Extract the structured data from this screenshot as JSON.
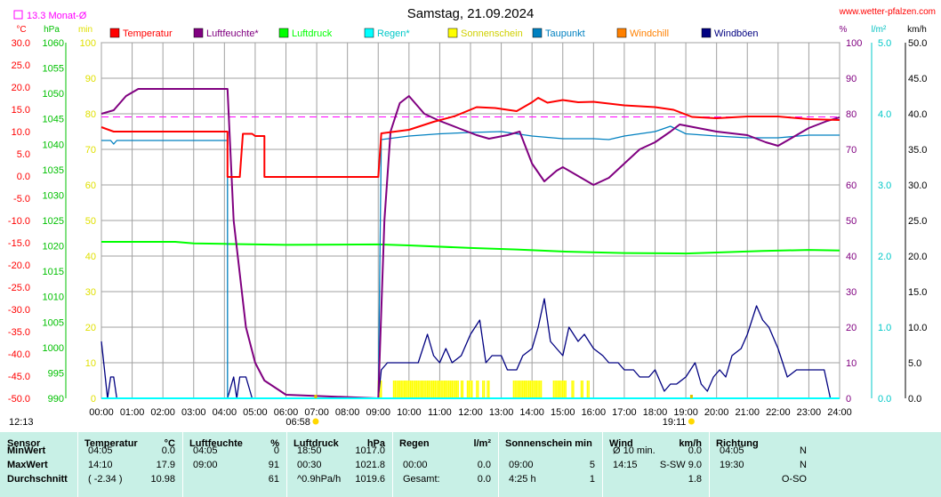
{
  "header": {
    "title": "Samstag, 21.09.2024",
    "site": "www.wetter-pfalzen.com",
    "month_avg_label": "13.3 Monat-Ø"
  },
  "axes": {
    "units_left": [
      "°C",
      "hPa",
      "min"
    ],
    "units_right": [
      "%",
      "l/m²",
      "km/h"
    ],
    "temp_ticks": [
      "30.0",
      "25.0",
      "20.0",
      "15.0",
      "10.0",
      "5.0",
      "0.0",
      "-5.0",
      "-10.0",
      "-15.0",
      "-20.0",
      "-25.0",
      "-30.0",
      "-35.0",
      "-40.0",
      "-45.0",
      "-50.0"
    ],
    "hpa_ticks": [
      "1060",
      "1055",
      "1050",
      "1045",
      "1040",
      "1035",
      "1030",
      "1025",
      "1020",
      "1015",
      "1010",
      "1005",
      "1000",
      "995",
      "990"
    ],
    "min_ticks": [
      "100",
      "90",
      "80",
      "70",
      "60",
      "50",
      "40",
      "30",
      "20",
      "10",
      "0"
    ],
    "pct_ticks": [
      "100",
      "90",
      "80",
      "70",
      "60",
      "50",
      "40",
      "30",
      "20",
      "10",
      "0"
    ],
    "rain_ticks": [
      "5.0",
      "4.0",
      "3.0",
      "2.0",
      "1.0",
      "0.0"
    ],
    "wind_ticks": [
      "50.0",
      "45.0",
      "40.0",
      "35.0",
      "30.0",
      "25.0",
      "20.0",
      "15.0",
      "10.0",
      "5.0",
      "0.0"
    ],
    "time_ticks": [
      "00:00",
      "01:00",
      "02:00",
      "03:00",
      "04:00",
      "05:00",
      "06:00",
      "07:00",
      "08:00",
      "09:00",
      "10:00",
      "11:00",
      "12:00",
      "13:00",
      "14:00",
      "15:00",
      "16:00",
      "17:00",
      "18:00",
      "19:00",
      "20:00",
      "21:00",
      "22:00",
      "23:00",
      "24:00"
    ]
  },
  "sun": {
    "sunrise": "06:58",
    "sunset": "19:11",
    "moon": "12:13"
  },
  "colors": {
    "temperatur": "#ff0000",
    "luftfeuchte": "#800080",
    "luftdruck": "#00ff00",
    "regen": "#00ffff",
    "sonnenschein": "#ffff00",
    "taupunkt": "#0080c0",
    "windchill": "#ff8000",
    "windboeen": "#000080",
    "month_avg": "#ff00ff",
    "grid": "#a0a0a0"
  },
  "legend": [
    {
      "label": "Temperatur",
      "color": "#ff0000"
    },
    {
      "label": "Luftfeuchte*",
      "color": "#800080"
    },
    {
      "label": "Luftdruck",
      "color": "#00ff00"
    },
    {
      "label": "Regen*",
      "color": "#00ffff"
    },
    {
      "label": "Sonnenschein",
      "color": "#ffff00"
    },
    {
      "label": "Taupunkt",
      "color": "#0080c0"
    },
    {
      "label": "Windchill",
      "color": "#ff8000"
    },
    {
      "label": "Windböen",
      "color": "#000080"
    }
  ],
  "chart_data": {
    "type": "line",
    "title": "Samstag, 21.09.2024",
    "x_range_hours": [
      0,
      24
    ],
    "grid": true,
    "legend_position": "top",
    "month_avg_temp": 13.3,
    "series": [
      {
        "name": "Temperatur",
        "axis": "temp",
        "ylim": [
          -50,
          30
        ],
        "points": [
          [
            0,
            11
          ],
          [
            0.4,
            10
          ],
          [
            4.1,
            10
          ],
          [
            4.1,
            -0.2
          ],
          [
            4.5,
            -0.2
          ],
          [
            4.6,
            9.5
          ],
          [
            4.9,
            9.5
          ],
          [
            5.0,
            9.0
          ],
          [
            5.3,
            9.0
          ],
          [
            5.3,
            -0.2
          ],
          [
            9.0,
            -0.2
          ],
          [
            9.1,
            9.6
          ],
          [
            10,
            10.4
          ],
          [
            10.8,
            12.2
          ],
          [
            11.5,
            13.5
          ],
          [
            12.2,
            15.5
          ],
          [
            12.8,
            15.3
          ],
          [
            13.5,
            14.6
          ],
          [
            14.0,
            16.6
          ],
          [
            14.2,
            17.6
          ],
          [
            14.5,
            16.5
          ],
          [
            15.0,
            17.1
          ],
          [
            15.5,
            16.6
          ],
          [
            16.0,
            16.7
          ],
          [
            17.0,
            15.9
          ],
          [
            18.0,
            15.5
          ],
          [
            18.6,
            14.9
          ],
          [
            19.2,
            13.3
          ],
          [
            20.0,
            13.0
          ],
          [
            21.0,
            13.4
          ],
          [
            22.0,
            13.4
          ],
          [
            23.0,
            12.8
          ],
          [
            24.0,
            12.6
          ]
        ]
      },
      {
        "name": "Luftfeuchte*",
        "axis": "pct",
        "ylim": [
          0,
          100
        ],
        "points": [
          [
            0,
            80
          ],
          [
            0.4,
            81
          ],
          [
            0.8,
            85
          ],
          [
            1.2,
            87
          ],
          [
            4.1,
            87
          ],
          [
            4.3,
            50
          ],
          [
            4.7,
            20
          ],
          [
            5.0,
            10
          ],
          [
            5.3,
            5
          ],
          [
            6.0,
            1
          ],
          [
            9.0,
            0
          ],
          [
            9.2,
            50
          ],
          [
            9.4,
            75
          ],
          [
            9.7,
            83
          ],
          [
            10.0,
            85
          ],
          [
            10.5,
            80
          ],
          [
            11.0,
            78
          ],
          [
            11.6,
            76
          ],
          [
            12.2,
            74
          ],
          [
            12.6,
            73
          ],
          [
            13.2,
            74
          ],
          [
            13.6,
            75
          ],
          [
            14.0,
            66
          ],
          [
            14.4,
            61
          ],
          [
            14.8,
            64
          ],
          [
            15.0,
            65
          ],
          [
            15.6,
            62
          ],
          [
            16.0,
            60
          ],
          [
            16.5,
            62
          ],
          [
            17.0,
            66
          ],
          [
            17.5,
            70
          ],
          [
            18.0,
            72
          ],
          [
            18.5,
            75
          ],
          [
            18.8,
            77
          ],
          [
            19.4,
            76
          ],
          [
            20.0,
            75
          ],
          [
            21.0,
            74
          ],
          [
            21.6,
            72
          ],
          [
            22.0,
            71
          ],
          [
            22.4,
            73
          ],
          [
            23.0,
            76
          ],
          [
            23.6,
            78
          ],
          [
            24,
            79
          ]
        ]
      },
      {
        "name": "Luftdruck",
        "axis": "hpa",
        "ylim": [
          990,
          1060
        ],
        "points": [
          [
            0,
            1020.8
          ],
          [
            2.4,
            1020.8
          ],
          [
            3.0,
            1020.5
          ],
          [
            4.0,
            1020.4
          ],
          [
            6.0,
            1020.2
          ],
          [
            9.0,
            1020.3
          ],
          [
            10.0,
            1020.1
          ],
          [
            12.0,
            1019.6
          ],
          [
            13.5,
            1019.3
          ],
          [
            15.0,
            1018.9
          ],
          [
            17.0,
            1018.6
          ],
          [
            19.0,
            1018.5
          ],
          [
            20.0,
            1018.7
          ],
          [
            21.5,
            1019.0
          ],
          [
            23.0,
            1019.2
          ],
          [
            24,
            1019.1
          ]
        ]
      },
      {
        "name": "Taupunkt",
        "axis": "temp",
        "ylim": [
          -50,
          30
        ],
        "points": [
          [
            0,
            8
          ],
          [
            0.3,
            8
          ],
          [
            0.4,
            7.2
          ],
          [
            0.5,
            8
          ],
          [
            4.1,
            8
          ],
          [
            4.1,
            -50
          ],
          [
            9.0,
            -50
          ],
          [
            9.1,
            8.2
          ],
          [
            10,
            9
          ],
          [
            11,
            9.5
          ],
          [
            12,
            9.8
          ],
          [
            13,
            10
          ],
          [
            14,
            9
          ],
          [
            15,
            8.4
          ],
          [
            16,
            8.4
          ],
          [
            16.5,
            8.2
          ],
          [
            17,
            9
          ],
          [
            18,
            10
          ],
          [
            18.5,
            11.2
          ],
          [
            19,
            9.5
          ],
          [
            20,
            9
          ],
          [
            21,
            8.6
          ],
          [
            22,
            8.6
          ],
          [
            23,
            9.2
          ],
          [
            24,
            9.2
          ]
        ]
      },
      {
        "name": "Windböen",
        "axis": "wind",
        "ylim": [
          0,
          50
        ],
        "points": [
          [
            0,
            8
          ],
          [
            0.1,
            4
          ],
          [
            0.2,
            0
          ],
          [
            0.3,
            3
          ],
          [
            0.4,
            3
          ],
          [
            0.5,
            0
          ],
          [
            4.1,
            0
          ],
          [
            4.3,
            3
          ],
          [
            4.4,
            0
          ],
          [
            4.5,
            3
          ],
          [
            4.7,
            3
          ],
          [
            4.9,
            0
          ],
          [
            9.0,
            0
          ],
          [
            9.1,
            4
          ],
          [
            9.3,
            5
          ],
          [
            9.6,
            5
          ],
          [
            9.8,
            5
          ],
          [
            10.0,
            5
          ],
          [
            10.3,
            5
          ],
          [
            10.6,
            9
          ],
          [
            10.8,
            6
          ],
          [
            11.0,
            5
          ],
          [
            11.2,
            7
          ],
          [
            11.4,
            5
          ],
          [
            11.7,
            6
          ],
          [
            12.0,
            9
          ],
          [
            12.3,
            11
          ],
          [
            12.5,
            5
          ],
          [
            12.7,
            6
          ],
          [
            13.0,
            6
          ],
          [
            13.2,
            4
          ],
          [
            13.5,
            4
          ],
          [
            13.7,
            6
          ],
          [
            14.0,
            7
          ],
          [
            14.2,
            10
          ],
          [
            14.4,
            14
          ],
          [
            14.6,
            8
          ],
          [
            14.8,
            7
          ],
          [
            15.0,
            6
          ],
          [
            15.2,
            10
          ],
          [
            15.5,
            8
          ],
          [
            15.7,
            9
          ],
          [
            16.0,
            7
          ],
          [
            16.3,
            6
          ],
          [
            16.5,
            5
          ],
          [
            16.8,
            5
          ],
          [
            17.0,
            4
          ],
          [
            17.3,
            4
          ],
          [
            17.5,
            3
          ],
          [
            17.8,
            3
          ],
          [
            18.0,
            4
          ],
          [
            18.3,
            1
          ],
          [
            18.5,
            2
          ],
          [
            18.7,
            2
          ],
          [
            19.0,
            3
          ],
          [
            19.3,
            5
          ],
          [
            19.5,
            2
          ],
          [
            19.7,
            1
          ],
          [
            19.9,
            3
          ],
          [
            20.1,
            4
          ],
          [
            20.3,
            3
          ],
          [
            20.5,
            6
          ],
          [
            20.8,
            7
          ],
          [
            21.0,
            9
          ],
          [
            21.3,
            13
          ],
          [
            21.5,
            11
          ],
          [
            21.7,
            10
          ],
          [
            22.0,
            7
          ],
          [
            22.3,
            3
          ],
          [
            22.6,
            4
          ],
          [
            22.9,
            4
          ],
          [
            23.2,
            4
          ],
          [
            23.5,
            4
          ],
          [
            23.7,
            0
          ],
          [
            24,
            0
          ]
        ]
      }
    ],
    "sunshine_minutes_intervals": [
      [
        9.0,
        9.1
      ],
      [
        9.5,
        11.6
      ],
      [
        11.7,
        11.75
      ],
      [
        11.9,
        12.05
      ],
      [
        12.2,
        12.25
      ],
      [
        12.4,
        12.45
      ],
      [
        12.55,
        12.6
      ],
      [
        13.4,
        14.3
      ],
      [
        14.7,
        15.1
      ],
      [
        15.3,
        15.35
      ],
      [
        15.6,
        15.65
      ],
      [
        15.8,
        15.85
      ]
    ]
  },
  "stats": {
    "columns": [
      {
        "header": "Sensor",
        "rows": [
          "MinWert",
          "MaxWert",
          "Durchschnitt"
        ]
      },
      {
        "header": "Temperatur",
        "unit": "°C",
        "rows": [
          [
            "04:05",
            "0.0"
          ],
          [
            "14:10",
            "17.9"
          ],
          [
            "( -2.34 )",
            "10.98"
          ]
        ]
      },
      {
        "header": "Luftfeuchte",
        "unit": "%",
        "rows": [
          [
            "04:05",
            "0"
          ],
          [
            "09:00",
            "91"
          ],
          [
            "",
            "61"
          ]
        ]
      },
      {
        "header": "Luftdruck",
        "unit": "hPa",
        "rows": [
          [
            "18:50",
            "1017.0"
          ],
          [
            "00:30",
            "1021.8"
          ],
          [
            "^0.9hPa/h",
            "1019.6"
          ]
        ]
      },
      {
        "header": "Regen",
        "unit": "l/m²",
        "rows": [
          [
            "",
            ""
          ],
          [
            "00:00",
            "0.0"
          ],
          [
            "Gesamt:",
            "0.0"
          ]
        ]
      },
      {
        "header": "Sonnenschein min",
        "unit": "",
        "rows": [
          [
            "",
            ""
          ],
          [
            "09:00",
            "5"
          ],
          [
            "4:25 h",
            "1"
          ]
        ]
      },
      {
        "header": "Wind",
        "unit": "km/h",
        "rows": [
          [
            "Ø 10 min.",
            "0.0"
          ],
          [
            "14:15",
            "S-SW 9.0"
          ],
          [
            "",
            "1.8"
          ]
        ]
      },
      {
        "header": "Richtung",
        "unit": "",
        "rows": [
          [
            "04:05",
            "N"
          ],
          [
            "19:30",
            "N"
          ],
          [
            "",
            "O-SO"
          ]
        ]
      }
    ]
  }
}
